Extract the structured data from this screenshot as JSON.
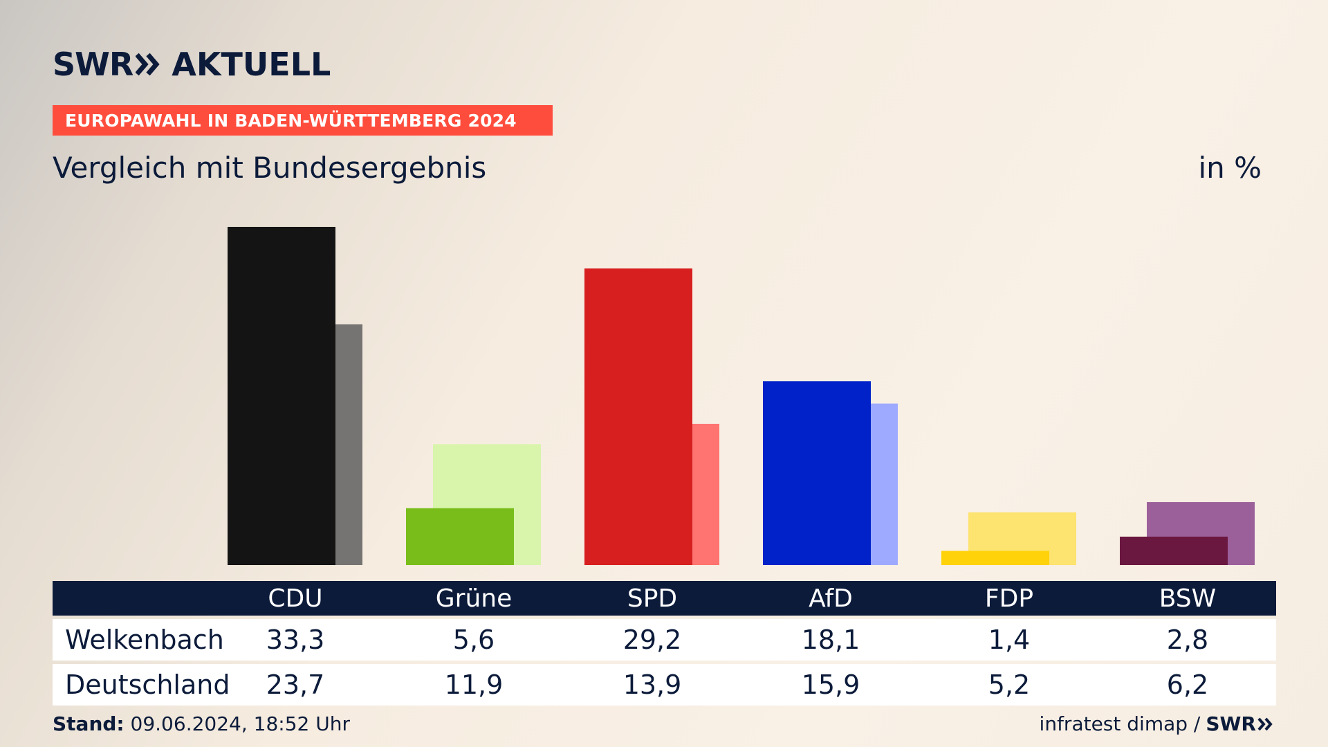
{
  "header": {
    "logo_swr": "SWR",
    "logo_aktuell": "AKTUELL",
    "banner": "EUROPAWAHL IN BADEN-WÜRTTEMBERG 2024",
    "subtitle": "Vergleich mit Bundesergebnis",
    "unit": "in %"
  },
  "table": {
    "rows": [
      {
        "label": "Welkenbach",
        "values": [
          "33,3",
          "5,6",
          "29,2",
          "18,1",
          "1,4",
          "2,8"
        ]
      },
      {
        "label": "Deutschland",
        "values": [
          "23,7",
          "11,9",
          "13,9",
          "15,9",
          "5,2",
          "6,2"
        ]
      }
    ]
  },
  "footer": {
    "stand_label": "Stand:",
    "stand_value": "09.06.2024, 18:52 Uhr",
    "source": "infratest dimap /",
    "source_logo": "SWR"
  },
  "colors": {
    "navy": "#0c1b3a",
    "banner": "#ff4d3d"
  },
  "chart_data": {
    "type": "bar",
    "categories": [
      "CDU",
      "Grüne",
      "SPD",
      "AfD",
      "FDP",
      "BSW"
    ],
    "series": [
      {
        "name": "Welkenbach",
        "values": [
          33.3,
          5.6,
          29.2,
          18.1,
          1.4,
          2.8
        ],
        "colors": [
          "#141414",
          "#79bd1a",
          "#d71f1f",
          "#0022c8",
          "#ffd20a",
          "#6b1840"
        ]
      },
      {
        "name": "Deutschland",
        "values": [
          23.7,
          11.9,
          13.9,
          15.9,
          5.2,
          6.2
        ],
        "colors": [
          "#767472",
          "#d8f5ab",
          "#ff7370",
          "#9eaaff",
          "#fde36f",
          "#9b5f9a"
        ]
      }
    ],
    "ylim": [
      0,
      33.3
    ],
    "grid": false,
    "legend": "none"
  }
}
